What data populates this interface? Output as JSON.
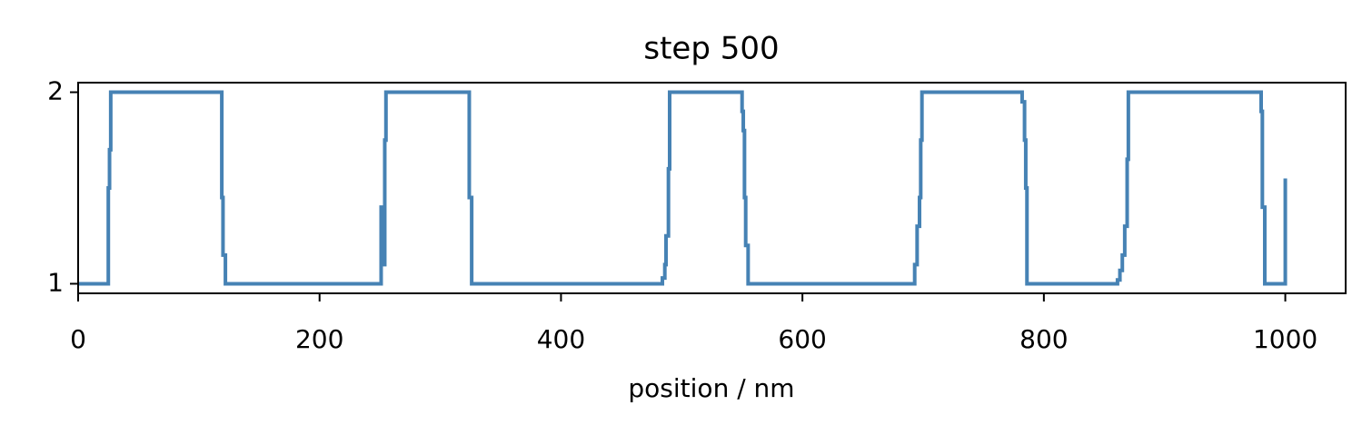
{
  "chart_data": {
    "type": "line",
    "title": "step 500",
    "xlabel": "position / nm",
    "xlim": [
      0,
      1050
    ],
    "ylim": [
      0.95,
      2.05
    ],
    "xticks": [
      0,
      200,
      400,
      600,
      800,
      1000
    ],
    "yticks": [
      1,
      2
    ],
    "series": [
      {
        "color": "#4682b4",
        "x": [
          0,
          25,
          25,
          26,
          26,
          27,
          27,
          119,
          119,
          120,
          120,
          122,
          122,
          251,
          251,
          252,
          252,
          254,
          254,
          255,
          255,
          324,
          324,
          326,
          326,
          484,
          484,
          486,
          486,
          487,
          487,
          489,
          489,
          490,
          490,
          550,
          550,
          551,
          551,
          552,
          552,
          553,
          553,
          555,
          555,
          693,
          693,
          695,
          695,
          697,
          697,
          698,
          698,
          699,
          699,
          782,
          782,
          784,
          784,
          785,
          785,
          786,
          786,
          861,
          861,
          863,
          863,
          865,
          865,
          867,
          867,
          869,
          869,
          870,
          870,
          980,
          980,
          981,
          981,
          983,
          983,
          1000,
          1000
        ],
        "values": [
          1,
          1,
          1.5,
          1.5,
          1.7,
          1.7,
          2,
          2,
          1.45,
          1.45,
          1.15,
          1.15,
          1,
          1,
          1.4,
          1.4,
          1.1,
          1.1,
          1.75,
          1.75,
          2,
          2,
          1.45,
          1.45,
          1,
          1,
          1.03,
          1.03,
          1.1,
          1.1,
          1.25,
          1.25,
          1.6,
          1.6,
          2,
          2,
          1.9,
          1.9,
          1.8,
          1.8,
          1.45,
          1.45,
          1.2,
          1.2,
          1,
          1,
          1.1,
          1.1,
          1.3,
          1.3,
          1.45,
          1.45,
          1.75,
          1.75,
          2,
          2,
          1.95,
          1.95,
          1.75,
          1.75,
          1.5,
          1.5,
          1,
          1,
          1.02,
          1.02,
          1.07,
          1.07,
          1.15,
          1.15,
          1.3,
          1.3,
          1.65,
          1.65,
          2,
          2,
          1.9,
          1.9,
          1.4,
          1.4,
          1,
          1,
          1.55
        ]
      }
    ]
  }
}
